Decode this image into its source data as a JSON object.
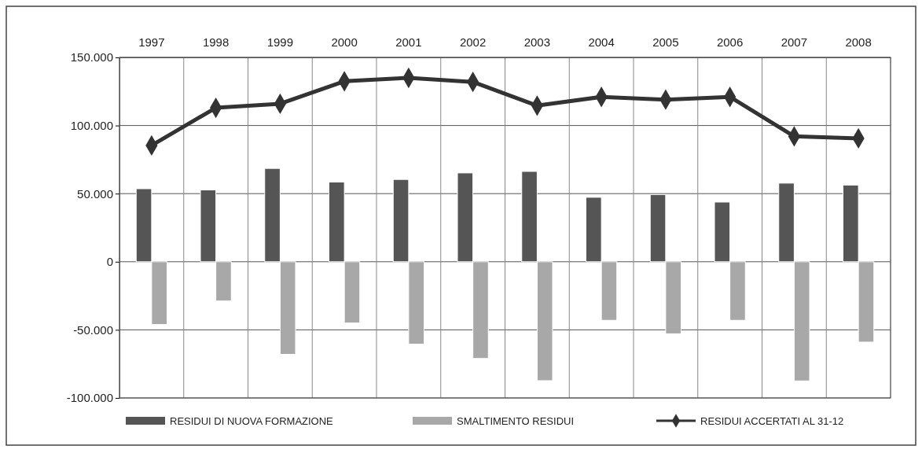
{
  "chart_data": {
    "type": "bar",
    "categories": [
      "1997",
      "1998",
      "1999",
      "2000",
      "2001",
      "2002",
      "2003",
      "2004",
      "2005",
      "2006",
      "2007",
      "2008"
    ],
    "series": [
      {
        "name": "RESIDUI DI NUOVA FORMAZIONE",
        "color": "#555555",
        "values": [
          53600,
          52700,
          68500,
          58500,
          60400,
          65200,
          66300,
          47300,
          49300,
          43800,
          57700,
          56300
        ]
      },
      {
        "name": "SMALTIMENTO RESIDUI",
        "color": "#a8a8a8",
        "values": [
          -46100,
          -28800,
          -68000,
          -45000,
          -60500,
          -71000,
          -87300,
          -43000,
          -52900,
          -43000,
          -87500,
          -59000
        ]
      },
      {
        "name": "RESIDUI ACCERTATI AL 31-12",
        "color": "#333333",
        "type": "line",
        "marker": "diamond",
        "values": [
          85400,
          113000,
          116000,
          132500,
          135000,
          132000,
          114600,
          121000,
          119000,
          121000,
          92000,
          90600
        ]
      }
    ],
    "ylim": [
      -100000,
      150000
    ],
    "yticks": [
      {
        "value": -100000,
        "label": "-100.000"
      },
      {
        "value": -50000,
        "label": "-50.000"
      },
      {
        "value": 0,
        "label": "0"
      },
      {
        "value": 50000,
        "label": "50.000"
      },
      {
        "value": 100000,
        "label": "100.000"
      },
      {
        "value": 150000,
        "label": "150.000"
      }
    ],
    "grid": true,
    "legend": "bottom"
  }
}
